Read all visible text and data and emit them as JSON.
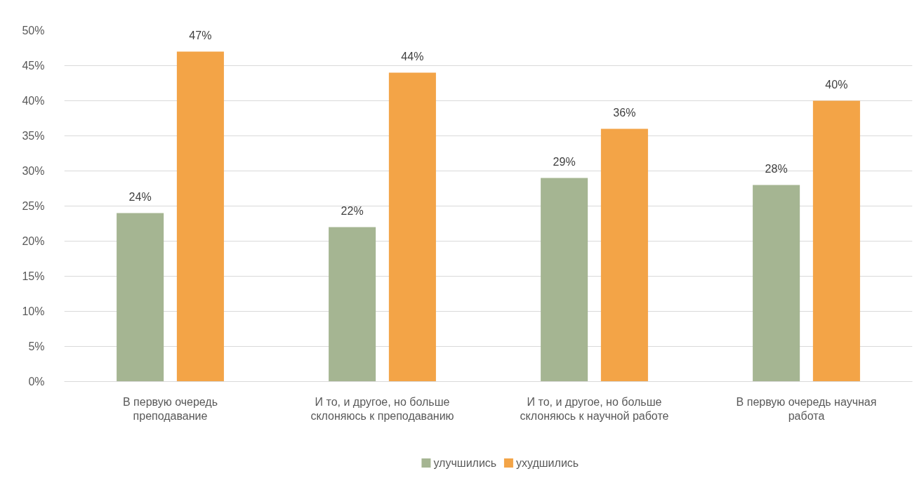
{
  "chart_data": {
    "type": "bar",
    "categories": [
      "В первую очередь преподавание",
      "И то, и другое, но больше склоняюсь к преподаванию",
      "И то, и другое, но больше склоняюсь к научной работе",
      "В первую очередь научная работа"
    ],
    "series": [
      {
        "name": "улучшились",
        "color": "#a5b592",
        "values": [
          24,
          22,
          29,
          28
        ],
        "value_labels": [
          "24%",
          "22%",
          "29%",
          "28%"
        ]
      },
      {
        "name": "ухудшились",
        "color": "#f3a447",
        "values": [
          47,
          44,
          36,
          40
        ],
        "value_labels": [
          "47%",
          "44%",
          "36%",
          "40%"
        ]
      }
    ],
    "ylim": [
      0,
      50
    ],
    "yticks": [
      {
        "value": 0,
        "label": "0%"
      },
      {
        "value": 5,
        "label": "5%"
      },
      {
        "value": 10,
        "label": "10%"
      },
      {
        "value": 15,
        "label": "15%"
      },
      {
        "value": 20,
        "label": "20%"
      },
      {
        "value": 25,
        "label": "25%"
      },
      {
        "value": 30,
        "label": "30%"
      },
      {
        "value": 35,
        "label": "35%"
      },
      {
        "value": 40,
        "label": "40%"
      },
      {
        "value": 45,
        "label": "45%"
      },
      {
        "value": 50,
        "label": "50%"
      }
    ],
    "grid": "y",
    "legend": "bottom"
  }
}
